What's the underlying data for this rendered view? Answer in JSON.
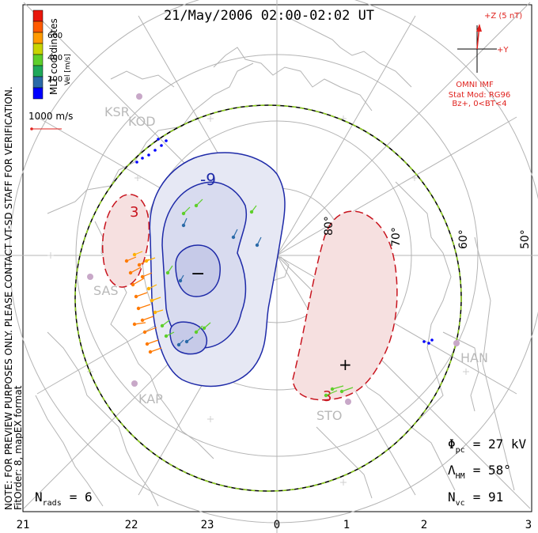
{
  "title": "21/May/2006 02:00-02:02 UT",
  "side_note": {
    "line1": "NOTE: FOR PREVIEW PURPOSES ONLY. PLEASE CONTACT VT-SD STAFF FOR VERIFICATION.",
    "line2": "FitOrder: 8,  mapEX format"
  },
  "coords_label": "MLT coordinates",
  "colorbar": {
    "label": "Vel [m/s]",
    "ticks": [
      "600",
      "400",
      "200"
    ],
    "colors": [
      "#e8170c",
      "#ff5a00",
      "#ff9a00",
      "#c8d400",
      "#5ecf2a",
      "#1fa85a",
      "#2a6aa8",
      "#0000ff"
    ]
  },
  "velocity_scale": "1000 m/s",
  "imf": {
    "axis_z": "+Z (5 nT)",
    "axis_y": "+Y",
    "source": "OMNI IMF",
    "model": "Stat Mod: RG96",
    "condition": "Bz+, 0<BT<4"
  },
  "stations": [
    "KSR",
    "KOD",
    "SAS",
    "KAP",
    "STO",
    "HAN"
  ],
  "latitude_labels": [
    "80°",
    "70°",
    "60°",
    "50°"
  ],
  "mlt_ticks": [
    "21",
    "22",
    "23",
    "0",
    "1",
    "2",
    "3"
  ],
  "contours": {
    "negative_label": "-9",
    "positive_label_left": "3",
    "positive_label_bottom": "3",
    "min_marker": "−",
    "max_marker": "+"
  },
  "stats": {
    "phi_symbol": "Φ",
    "phi_sub": "pc",
    "phi_value": "= 27 kV",
    "lambda_symbol": "Λ",
    "lambda_sub": "HM",
    "lambda_value": "= 58°",
    "nvc_symbol": "N",
    "nvc_sub": "vc",
    "nvc_value": "= 91",
    "nrads_symbol": "N",
    "nrads_sub": "rads",
    "nrads_value": "= 6"
  }
}
